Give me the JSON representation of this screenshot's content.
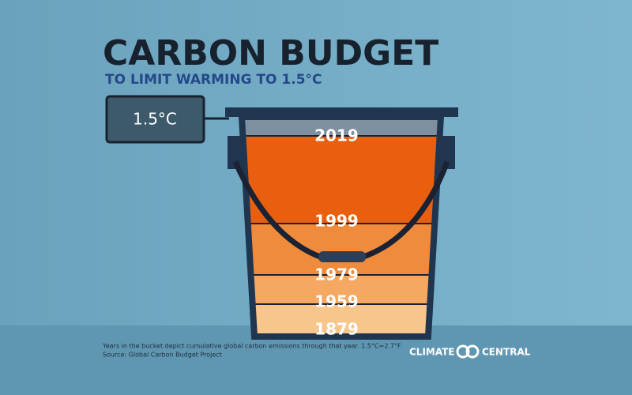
{
  "header": {
    "title": "CARBON BUDGET",
    "subtitle": "TO LIMIT WARMING TO 1.5°C"
  },
  "limit_label": "1.5°C",
  "bucket": {
    "levels": [
      "2019",
      "1999",
      "1979",
      "1959",
      "1879"
    ]
  },
  "footnote": [
    "Years in the bucket depict cumulative global carbon emissions through that year. 1.5°C=2.7°F",
    "Source: Global Carbon Budget Project"
  ],
  "logo": {
    "left": "CLIMATE",
    "right": "CENTRAL"
  }
}
